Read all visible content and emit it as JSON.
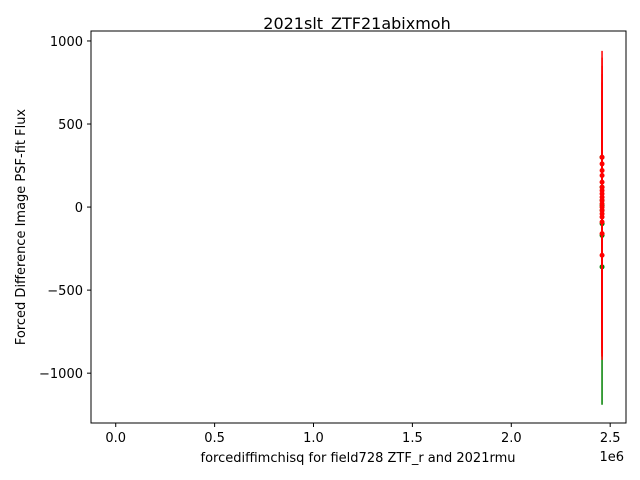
{
  "chart_data": {
    "type": "scatter",
    "title": "2021slt_ZTF21abixmoh",
    "xlabel": "forcediffimchisq for field728 ZTF_r and 2021rmu",
    "ylabel": "Forced Difference Image PSF-fit Flux",
    "x_offset_label": "1e6",
    "xlim": [
      -0.125,
      2.58
    ],
    "ylim": [
      -1300,
      1060
    ],
    "x_ticks": [
      0.0,
      0.5,
      1.0,
      1.5,
      2.0,
      2.5
    ],
    "x_tick_labels": [
      "0.0",
      "0.5",
      "1.0",
      "1.5",
      "2.0",
      "2.5"
    ],
    "y_ticks": [
      -1000,
      -500,
      0,
      500,
      1000
    ],
    "y_tick_labels": [
      "−1000",
      "−500",
      "0",
      "500",
      "1000"
    ],
    "grid": false,
    "series": [
      {
        "color": "#008000",
        "x": [
          2.4588,
          2.4589,
          2.459,
          2.4591,
          2.4592,
          2.459,
          2.4589,
          2.4591
        ],
        "y": [
          300,
          120,
          40,
          -20,
          -100,
          -170,
          -360,
          10
        ],
        "yerr_low": [
          -150,
          -400,
          -500,
          -600,
          -700,
          -800,
          -1190,
          -450
        ],
        "yerr_high": [
          480,
          420,
          380,
          300,
          250,
          200,
          150,
          350
        ]
      },
      {
        "color": "#ff0000",
        "x": [
          2.4589,
          2.459,
          2.4591,
          2.459,
          2.4589,
          2.4591,
          2.459,
          2.4589,
          2.4591,
          2.459,
          2.4589,
          2.459,
          2.4591,
          2.459,
          2.4589,
          2.459,
          2.4591,
          2.459
        ],
        "y": [
          300,
          260,
          220,
          190,
          150,
          120,
          100,
          80,
          60,
          40,
          20,
          0,
          -20,
          -40,
          -60,
          -90,
          -160,
          -290
        ],
        "yerr_low": [
          -200,
          -300,
          -350,
          -400,
          -450,
          -500,
          -550,
          -600,
          -650,
          -700,
          -750,
          -800,
          -850,
          -880,
          -900,
          -920,
          -900,
          -700
        ],
        "yerr_high": [
          940,
          900,
          850,
          800,
          750,
          700,
          650,
          600,
          560,
          520,
          480,
          440,
          400,
          360,
          320,
          280,
          250,
          200
        ]
      }
    ]
  }
}
